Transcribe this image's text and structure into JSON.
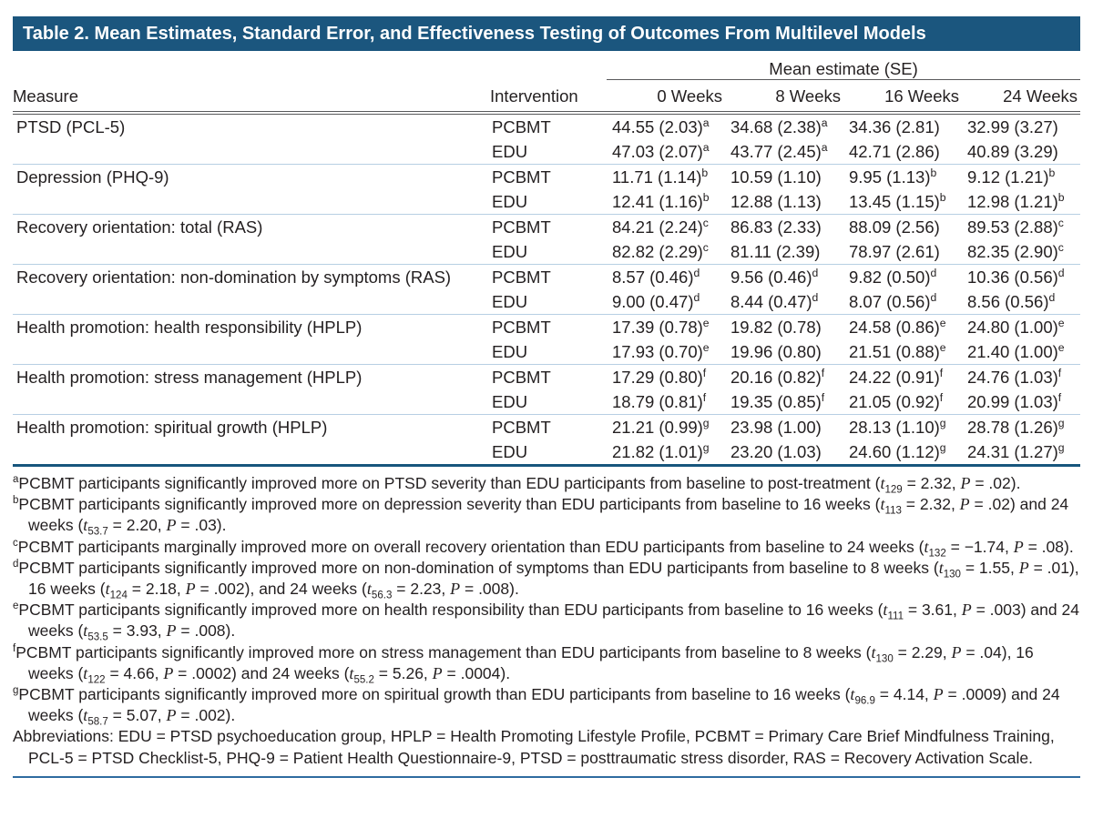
{
  "table": {
    "title": "Table 2. Mean Estimates, Standard Error, and Effectiveness Testing of Outcomes From Multilevel Models",
    "span_header": "Mean estimate (SE)",
    "columns": {
      "measure": "Measure",
      "intervention": "Intervention",
      "weeks": [
        "0 Weeks",
        "8 Weeks",
        "16 Weeks",
        "24 Weeks"
      ]
    },
    "groups": [
      {
        "measure": "PTSD (PCL-5)",
        "rows": [
          {
            "intervention": "PCBMT",
            "cells": [
              {
                "v": "44.55 (2.03)",
                "sup": "a"
              },
              {
                "v": "34.68 (2.38)",
                "sup": "a"
              },
              {
                "v": "34.36 (2.81)",
                "sup": ""
              },
              {
                "v": "32.99 (3.27)",
                "sup": ""
              }
            ]
          },
          {
            "intervention": "EDU",
            "cells": [
              {
                "v": "47.03 (2.07)",
                "sup": "a"
              },
              {
                "v": "43.77 (2.45)",
                "sup": "a"
              },
              {
                "v": "42.71 (2.86)",
                "sup": ""
              },
              {
                "v": "40.89 (3.29)",
                "sup": ""
              }
            ]
          }
        ]
      },
      {
        "measure": "Depression (PHQ-9)",
        "rows": [
          {
            "intervention": "PCBMT",
            "cells": [
              {
                "v": "11.71 (1.14)",
                "sup": "b"
              },
              {
                "v": "10.59 (1.10)",
                "sup": ""
              },
              {
                "v": "9.95 (1.13)",
                "sup": "b"
              },
              {
                "v": "9.12 (1.21)",
                "sup": "b"
              }
            ]
          },
          {
            "intervention": "EDU",
            "cells": [
              {
                "v": "12.41 (1.16)",
                "sup": "b"
              },
              {
                "v": "12.88 (1.13)",
                "sup": ""
              },
              {
                "v": "13.45 (1.15)",
                "sup": "b"
              },
              {
                "v": "12.98 (1.21)",
                "sup": "b"
              }
            ]
          }
        ]
      },
      {
        "measure": "Recovery orientation: total (RAS)",
        "rows": [
          {
            "intervention": "PCBMT",
            "cells": [
              {
                "v": "84.21 (2.24)",
                "sup": "c"
              },
              {
                "v": "86.83 (2.33)",
                "sup": ""
              },
              {
                "v": "88.09 (2.56)",
                "sup": ""
              },
              {
                "v": "89.53 (2.88)",
                "sup": "c"
              }
            ]
          },
          {
            "intervention": "EDU",
            "cells": [
              {
                "v": "82.82 (2.29)",
                "sup": "c"
              },
              {
                "v": "81.11 (2.39)",
                "sup": ""
              },
              {
                "v": "78.97 (2.61)",
                "sup": ""
              },
              {
                "v": "82.35 (2.90)",
                "sup": "c"
              }
            ]
          }
        ]
      },
      {
        "measure": "Recovery orientation: non-domination by symptoms (RAS)",
        "rows": [
          {
            "intervention": "PCBMT",
            "cells": [
              {
                "v": "8.57 (0.46)",
                "sup": "d"
              },
              {
                "v": "9.56 (0.46)",
                "sup": "d"
              },
              {
                "v": "9.82 (0.50)",
                "sup": "d"
              },
              {
                "v": "10.36 (0.56)",
                "sup": "d"
              }
            ]
          },
          {
            "intervention": "EDU",
            "cells": [
              {
                "v": "9.00 (0.47)",
                "sup": "d"
              },
              {
                "v": "8.44 (0.47)",
                "sup": "d"
              },
              {
                "v": "8.07 (0.56)",
                "sup": "d"
              },
              {
                "v": "8.56 (0.56)",
                "sup": "d"
              }
            ]
          }
        ]
      },
      {
        "measure": "Health promotion: health responsibility (HPLP)",
        "rows": [
          {
            "intervention": "PCBMT",
            "cells": [
              {
                "v": "17.39 (0.78)",
                "sup": "e"
              },
              {
                "v": "19.82 (0.78)",
                "sup": ""
              },
              {
                "v": "24.58 (0.86)",
                "sup": "e"
              },
              {
                "v": "24.80 (1.00)",
                "sup": "e"
              }
            ]
          },
          {
            "intervention": "EDU",
            "cells": [
              {
                "v": "17.93 (0.70)",
                "sup": "e"
              },
              {
                "v": "19.96 (0.80)",
                "sup": ""
              },
              {
                "v": "21.51 (0.88)",
                "sup": "e"
              },
              {
                "v": "21.40 (1.00)",
                "sup": "e"
              }
            ]
          }
        ]
      },
      {
        "measure": "Health promotion: stress management (HPLP)",
        "rows": [
          {
            "intervention": "PCBMT",
            "cells": [
              {
                "v": "17.29 (0.80)",
                "sup": "f"
              },
              {
                "v": "20.16 (0.82)",
                "sup": "f"
              },
              {
                "v": "24.22 (0.91)",
                "sup": "f"
              },
              {
                "v": "24.76 (1.03)",
                "sup": "f"
              }
            ]
          },
          {
            "intervention": "EDU",
            "cells": [
              {
                "v": "18.79 (0.81)",
                "sup": "f"
              },
              {
                "v": "19.35 (0.85)",
                "sup": "f"
              },
              {
                "v": "21.05 (0.92)",
                "sup": "f"
              },
              {
                "v": "20.99 (1.03)",
                "sup": "f"
              }
            ]
          }
        ]
      },
      {
        "measure": "Health promotion: spiritual growth (HPLP)",
        "rows": [
          {
            "intervention": "PCBMT",
            "cells": [
              {
                "v": "21.21 (0.99)",
                "sup": "g"
              },
              {
                "v": "23.98 (1.00)",
                "sup": ""
              },
              {
                "v": "28.13 (1.10)",
                "sup": "g"
              },
              {
                "v": "28.78 (1.26)",
                "sup": "g"
              }
            ]
          },
          {
            "intervention": "EDU",
            "cells": [
              {
                "v": "21.82 (1.01)",
                "sup": "g"
              },
              {
                "v": "23.20 (1.03)",
                "sup": ""
              },
              {
                "v": "24.60 (1.12)",
                "sup": "g"
              },
              {
                "v": "24.31 (1.27)",
                "sup": "g"
              }
            ]
          }
        ]
      }
    ]
  },
  "footnotes": [
    {
      "marker": "a",
      "parts": [
        {
          "s": "n",
          "t": "PCBMT participants significantly improved more on PTSD severity than EDU participants from baseline to post-treatment ("
        },
        {
          "s": "i",
          "t": "t"
        },
        {
          "s": "sub",
          "t": "129"
        },
        {
          "s": "n",
          "t": " = 2.32, "
        },
        {
          "s": "i",
          "t": "P"
        },
        {
          "s": "n",
          "t": " = .02)."
        }
      ]
    },
    {
      "marker": "b",
      "parts": [
        {
          "s": "n",
          "t": "PCBMT participants significantly improved more on depression severity than EDU participants from baseline to 16 weeks ("
        },
        {
          "s": "i",
          "t": "t"
        },
        {
          "s": "sub",
          "t": "113"
        },
        {
          "s": "n",
          "t": " = 2.32, "
        },
        {
          "s": "i",
          "t": "P"
        },
        {
          "s": "n",
          "t": " = .02) and 24 weeks ("
        },
        {
          "s": "i",
          "t": "t"
        },
        {
          "s": "sub",
          "t": "53.7"
        },
        {
          "s": "n",
          "t": " = 2.20, "
        },
        {
          "s": "i",
          "t": "P"
        },
        {
          "s": "n",
          "t": " = .03)."
        }
      ]
    },
    {
      "marker": "c",
      "parts": [
        {
          "s": "n",
          "t": "PCBMT participants marginally improved more on overall recovery orientation than EDU participants from baseline to 24 weeks ("
        },
        {
          "s": "i",
          "t": "t"
        },
        {
          "s": "sub",
          "t": "132"
        },
        {
          "s": "n",
          "t": " = −1.74, "
        },
        {
          "s": "i",
          "t": "P"
        },
        {
          "s": "n",
          "t": " = .08)."
        }
      ]
    },
    {
      "marker": "d",
      "parts": [
        {
          "s": "n",
          "t": "PCBMT participants significantly improved more on non-domination of symptoms than EDU participants from baseline to 8 weeks ("
        },
        {
          "s": "i",
          "t": "t"
        },
        {
          "s": "sub",
          "t": "130"
        },
        {
          "s": "n",
          "t": " = 1.55, "
        },
        {
          "s": "i",
          "t": "P"
        },
        {
          "s": "n",
          "t": " = .01), 16 weeks ("
        },
        {
          "s": "i",
          "t": "t"
        },
        {
          "s": "sub",
          "t": "124"
        },
        {
          "s": "n",
          "t": " = 2.18, "
        },
        {
          "s": "i",
          "t": "P"
        },
        {
          "s": "n",
          "t": " = .002), and 24 weeks ("
        },
        {
          "s": "i",
          "t": "t"
        },
        {
          "s": "sub",
          "t": "56.3"
        },
        {
          "s": "n",
          "t": " = 2.23, "
        },
        {
          "s": "i",
          "t": "P"
        },
        {
          "s": "n",
          "t": " = .008)."
        }
      ]
    },
    {
      "marker": "e",
      "parts": [
        {
          "s": "n",
          "t": "PCBMT participants significantly improved more on health responsibility than EDU participants from baseline to 16 weeks ("
        },
        {
          "s": "i",
          "t": "t"
        },
        {
          "s": "sub",
          "t": "111"
        },
        {
          "s": "n",
          "t": " = 3.61, "
        },
        {
          "s": "i",
          "t": "P"
        },
        {
          "s": "n",
          "t": " = .003) and 24 weeks ("
        },
        {
          "s": "i",
          "t": "t"
        },
        {
          "s": "sub",
          "t": "53.5"
        },
        {
          "s": "n",
          "t": " = 3.93, "
        },
        {
          "s": "i",
          "t": "P"
        },
        {
          "s": "n",
          "t": " = .008)."
        }
      ]
    },
    {
      "marker": "f",
      "parts": [
        {
          "s": "n",
          "t": "PCBMT participants significantly improved more on stress management than EDU participants from baseline to 8 weeks ("
        },
        {
          "s": "i",
          "t": "t"
        },
        {
          "s": "sub",
          "t": "130"
        },
        {
          "s": "n",
          "t": " = 2.29, "
        },
        {
          "s": "i",
          "t": "P"
        },
        {
          "s": "n",
          "t": " = .04), 16 weeks ("
        },
        {
          "s": "i",
          "t": "t"
        },
        {
          "s": "sub",
          "t": "122"
        },
        {
          "s": "n",
          "t": " = 4.66, "
        },
        {
          "s": "i",
          "t": "P"
        },
        {
          "s": "n",
          "t": " = .0002) and 24 weeks ("
        },
        {
          "s": "i",
          "t": "t"
        },
        {
          "s": "sub",
          "t": "55.2"
        },
        {
          "s": "n",
          "t": " = 5.26, "
        },
        {
          "s": "i",
          "t": "P"
        },
        {
          "s": "n",
          "t": " = .0004)."
        }
      ]
    },
    {
      "marker": "g",
      "parts": [
        {
          "s": "n",
          "t": "PCBMT participants significantly improved more on spiritual growth than EDU participants from baseline to 16 weeks ("
        },
        {
          "s": "i",
          "t": "t"
        },
        {
          "s": "sub",
          "t": "96.9"
        },
        {
          "s": "n",
          "t": " = 4.14, "
        },
        {
          "s": "i",
          "t": "P"
        },
        {
          "s": "n",
          "t": " = .0009) and 24 weeks ("
        },
        {
          "s": "i",
          "t": "t"
        },
        {
          "s": "sub",
          "t": "58.7"
        },
        {
          "s": "n",
          "t": " = 5.07, "
        },
        {
          "s": "i",
          "t": "P"
        },
        {
          "s": "n",
          "t": " = .002)."
        }
      ]
    }
  ],
  "abbreviations": "Abbreviations: EDU = PTSD psychoeducation group, HPLP = Health Promoting Lifestyle Profile, PCBMT = Primary Care Brief Mindfulness Training, PCL-5 = PTSD Checklist-5, PHQ-9 = Patient Health Questionnaire-9, PTSD = posttraumatic stress disorder, RAS = Recovery Activation Scale.",
  "colors": {
    "title_bar": "#1b567e",
    "table_bottom_rule": "#17567d",
    "group_separator": "#b7cfe3",
    "header_rule": "#58595b",
    "footer_rule": "#2e6ba0",
    "text": "#231f20"
  }
}
